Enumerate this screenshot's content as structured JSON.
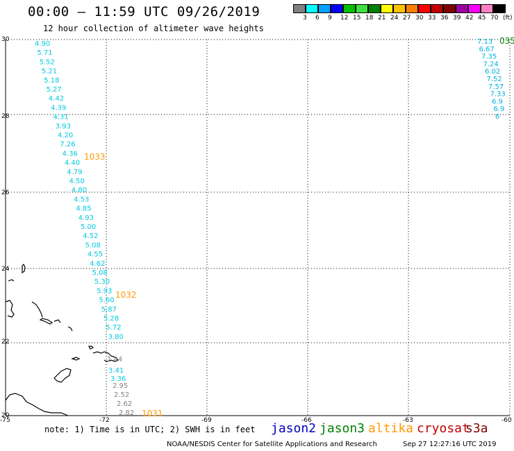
{
  "header": {
    "title": "00:00 — 11:59 UTC 09/26/2019",
    "subtitle": "12 hour collection of altimeter wave heights"
  },
  "colorbar": {
    "colors": [
      "#808080",
      "#00ffff",
      "#00a0ff",
      "#0000ff",
      "#00c000",
      "#40e040",
      "#008000",
      "#ffff00",
      "#ffc000",
      "#ff8000",
      "#ff0000",
      "#c00000",
      "#800000",
      "#a000a0",
      "#ff00ff",
      "#ff80c0",
      "#000000"
    ],
    "labels": [
      "3",
      "6",
      "9",
      "12",
      "15",
      "18",
      "21",
      "24",
      "27",
      "30",
      "33",
      "36",
      "39",
      "42",
      "45",
      "70",
      "(ft)"
    ]
  },
  "axes": {
    "lat_labels": [
      "30",
      "28",
      "26",
      "24",
      "22",
      "20"
    ],
    "lon_labels": [
      "-75",
      "-72",
      "-69",
      "-66",
      "-63",
      "-60"
    ]
  },
  "wave_heights": {
    "track_west": [
      "4.90",
      "5.71",
      "5.52",
      "5.21",
      "5.18",
      "5.27",
      "4.42",
      "4.39",
      "4.31",
      "3.93",
      "4.20",
      "7.26",
      "4.36",
      "4.40",
      "4.79",
      "4.50",
      "4.80",
      "4.53",
      "4.85",
      "4.93",
      "5.00",
      "4.52",
      "5.08",
      "4.55",
      "4.62",
      "5.08",
      "5.30",
      "5.93",
      "5.60",
      "5.87",
      "5.28",
      "5.72",
      "3.80"
    ],
    "track_west_gray": [
      "1.44",
      "2.95",
      "2.52",
      "2.62",
      "2.82"
    ],
    "track_west_cyan_low": [
      "3.41",
      "3.36"
    ],
    "track_east": [
      "7.13",
      "6.67",
      "7.35",
      "7.24",
      "6.02",
      "7.52",
      "7.57",
      "7.33",
      "6.9",
      "6.9",
      "6"
    ],
    "east_top_label": "035"
  },
  "pressure_labels": [
    "1033",
    "1032",
    "1031"
  ],
  "footer": {
    "note": "note: 1) Time is in UTC; 2) SWH is in feet",
    "legend": [
      {
        "name": "jason2",
        "color": "#0000c0"
      },
      {
        "name": "jason3",
        "color": "#008000"
      },
      {
        "name": "altika",
        "color": "#ff9900"
      },
      {
        "name": "cryosat",
        "color": "#c00000"
      },
      {
        "name": "s3a",
        "color": "#800000"
      }
    ],
    "credit": "NOAA/NESDIS Center for Satellite Applications and Research",
    "timestamp": "Sep 27 12:27:16 UTC 2019"
  },
  "colors": {
    "cyan_track": "#00c8e0",
    "east_track": "#00b0e0",
    "gray_track": "#808080",
    "pressure": "#ff9900",
    "east_top": "#008000",
    "grid": "#000000"
  }
}
